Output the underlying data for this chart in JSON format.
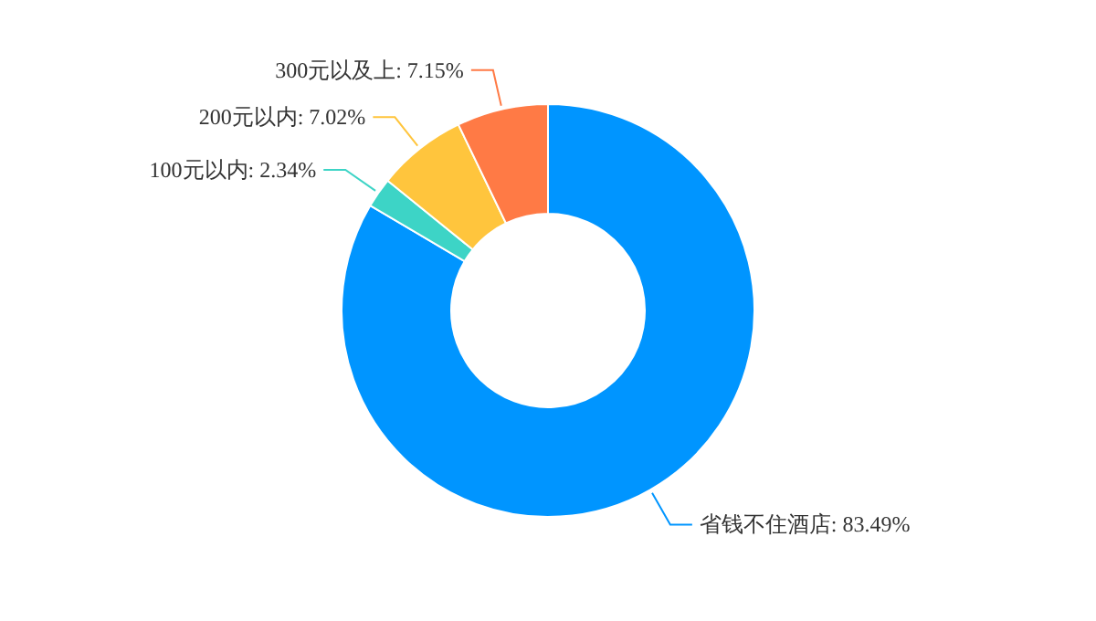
{
  "chart_data": {
    "type": "donut",
    "categories": [
      "省钱不住酒店",
      "100元以内",
      "200元以内",
      "300元以及上"
    ],
    "values": [
      83.49,
      2.34,
      7.02,
      7.15
    ],
    "value_labels": [
      "83.49%",
      "2.34%",
      "7.02%",
      "7.15%"
    ],
    "colors": [
      "#0095ff",
      "#3dd4c6",
      "#ffc53d",
      "#ff7a45"
    ]
  }
}
